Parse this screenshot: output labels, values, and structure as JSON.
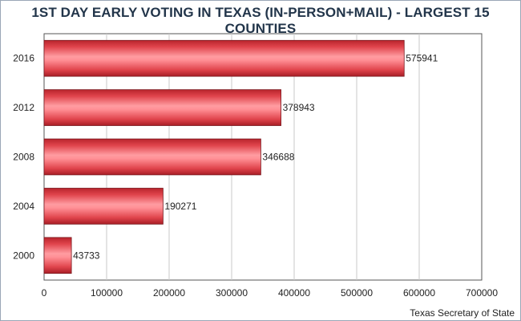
{
  "chart_data": {
    "type": "bar",
    "orientation": "horizontal",
    "title": "1ST DAY EARLY VOTING IN TEXAS (IN-PERSON+MAIL) - LARGEST 15 COUNTIES",
    "categories": [
      "2016",
      "2012",
      "2008",
      "2004",
      "2000"
    ],
    "values": [
      575941,
      378943,
      346688,
      190271,
      43733
    ],
    "data_labels": [
      "575941",
      "378943",
      "346688",
      "190271",
      "43733"
    ],
    "x_ticks": [
      0,
      100000,
      200000,
      300000,
      400000,
      500000,
      600000,
      700000
    ],
    "x_tick_labels": [
      "0",
      "100000",
      "200000",
      "300000",
      "400000",
      "500000",
      "600000",
      "700000"
    ],
    "xlim": [
      0,
      700000
    ],
    "xlabel": "",
    "ylabel": "",
    "grid": true,
    "legend": "none",
    "bar_color": "#e8474f",
    "source": "Texas Secretary of State"
  }
}
